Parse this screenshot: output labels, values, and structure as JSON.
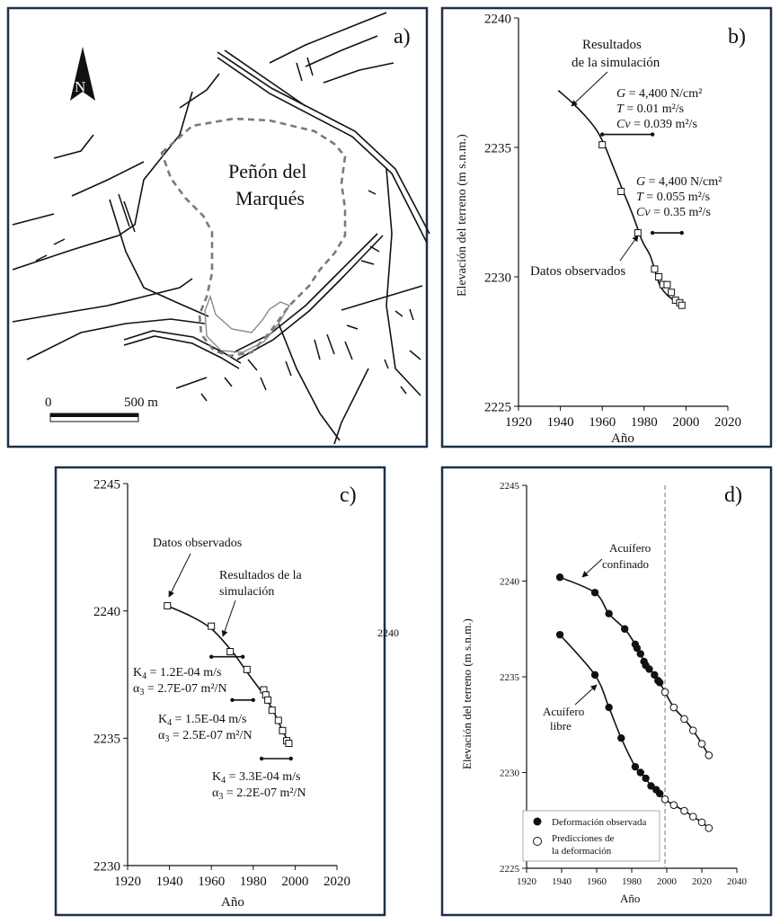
{
  "panel_a": {
    "letter": "a)",
    "north": "N",
    "place_name_1": "Peñón del",
    "place_name_2": "Marqués",
    "scale_zero": "0",
    "scale_end": "500 m"
  },
  "chart_data": [
    {
      "id": "b",
      "type": "line",
      "letter": "b)",
      "xlabel": "Año",
      "ylabel": "Elevación del terreno (m s.n.m.)",
      "xlim": [
        1920,
        2020
      ],
      "ylim": [
        2225,
        2240
      ],
      "xticks": [
        1920,
        1940,
        1960,
        1980,
        2000,
        2020
      ],
      "yticks": [
        2225,
        2230,
        2235,
        2240
      ],
      "series": [
        {
          "kind": "line",
          "x": [
            1939,
            1946,
            1952,
            1957,
            1961,
            1965,
            1970,
            1975,
            1979,
            1983,
            1986,
            1988,
            1991,
            1994,
            1997
          ],
          "y": [
            2237.2,
            2236.7,
            2236.2,
            2235.7,
            2235.1,
            2234.3,
            2233.3,
            2232.3,
            2231.4,
            2230.8,
            2230.0,
            2229.6,
            2229.3,
            2229.1,
            2228.9
          ]
        },
        {
          "kind": "open-square",
          "x": [
            1960,
            1969,
            1977,
            1985,
            1987,
            1989,
            1991,
            1993,
            1995,
            1997,
            1998
          ],
          "y": [
            2235.1,
            2233.3,
            2231.7,
            2230.3,
            2230.0,
            2229.7,
            2229.7,
            2229.4,
            2229.1,
            2229.0,
            2228.9
          ]
        }
      ],
      "period_bars": [
        {
          "x": [
            1960,
            1984
          ],
          "y": 2235.5
        },
        {
          "x": [
            1984,
            1998
          ],
          "y": 2231.7
        }
      ],
      "annotations": {
        "sim_label_1": "Resultados",
        "sim_label_2": "de la simulación",
        "obs_label": "Datos observados",
        "p1": {
          "G": "4,400 N/cm²",
          "T": "0.01 m²/s",
          "Cv": "0.039 m²/s"
        },
        "p2": {
          "G": "4,400 N/cm²",
          "T": "0.055 m²/s",
          "Cv": "0.35 m²/s"
        }
      }
    },
    {
      "id": "c",
      "type": "line",
      "letter": "c)",
      "xlabel": "Año",
      "ylabel": "",
      "xlim": [
        1920,
        2020
      ],
      "ylim": [
        2230,
        2245
      ],
      "xticks": [
        1920,
        1940,
        1960,
        1980,
        2000,
        2020
      ],
      "yticks": [
        2230,
        2235,
        2240,
        2245
      ],
      "stray_label": "2240",
      "series": [
        {
          "kind": "line",
          "x": [
            1939,
            1950,
            1960,
            1970,
            1977,
            1985,
            1990,
            1994,
            1998
          ],
          "y": [
            2240.2,
            2239.8,
            2239.3,
            2238.4,
            2237.6,
            2236.7,
            2236.0,
            2235.3,
            2234.7
          ]
        },
        {
          "kind": "open-square",
          "x": [
            1939,
            1960,
            1969,
            1977,
            1985,
            1986,
            1987,
            1989,
            1992,
            1994,
            1996,
            1997
          ],
          "y": [
            2240.2,
            2239.4,
            2238.4,
            2237.7,
            2236.9,
            2236.7,
            2236.5,
            2236.1,
            2235.7,
            2235.3,
            2234.9,
            2234.8
          ]
        }
      ],
      "period_bars": [
        {
          "x": [
            1960,
            1975
          ],
          "y": 2238.2
        },
        {
          "x": [
            1970,
            1980
          ],
          "y": 2236.5
        },
        {
          "x": [
            1984,
            1998
          ],
          "y": 2234.2
        }
      ],
      "annotations": {
        "obs_label": "Datos observados",
        "sim_label_1": "Resultados de la",
        "sim_label_2": "simulación",
        "p1": {
          "K": "1.2E-04 m/s",
          "a": "2.7E-07 m²/N"
        },
        "p2": {
          "K": "1.5E-04 m/s",
          "a": "2.5E-07 m²/N"
        },
        "p3": {
          "K": "3.3E-04 m/s",
          "a": "2.2E-07 m²/N"
        }
      }
    },
    {
      "id": "d",
      "type": "line",
      "letter": "d)",
      "xlabel": "Año",
      "ylabel": "Elevación del terreno (m s.n.m.)",
      "xlim": [
        1920,
        2040
      ],
      "ylim": [
        2225,
        2245
      ],
      "xticks": [
        1920,
        1940,
        1960,
        1980,
        2000,
        2020,
        2040
      ],
      "yticks": [
        2225,
        2230,
        2235,
        2240,
        2245
      ],
      "vline_x": 1999,
      "series": [
        {
          "name": "Acuífero confinado",
          "observed": {
            "x": [
              1939,
              1959,
              1967,
              1976,
              1982,
              1983,
              1985,
              1987,
              1988,
              1990,
              1993,
              1995,
              1996
            ],
            "y": [
              2240.2,
              2239.4,
              2238.3,
              2237.5,
              2236.7,
              2236.5,
              2236.2,
              2235.8,
              2235.6,
              2235.4,
              2235.1,
              2234.8,
              2234.7
            ]
          },
          "predicted": {
            "x": [
              1999,
              2004,
              2010,
              2015,
              2020,
              2024
            ],
            "y": [
              2234.2,
              2233.4,
              2232.8,
              2232.2,
              2231.5,
              2230.9
            ]
          }
        },
        {
          "name": "Acuífero libre",
          "observed": {
            "x": [
              1939,
              1959,
              1967,
              1974,
              1982,
              1985,
              1988,
              1991,
              1994,
              1996
            ],
            "y": [
              2237.2,
              2235.1,
              2233.4,
              2231.8,
              2230.3,
              2230.0,
              2229.7,
              2229.3,
              2229.1,
              2228.9
            ]
          },
          "predicted": {
            "x": [
              1999,
              2004,
              2010,
              2015,
              2020,
              2024
            ],
            "y": [
              2228.6,
              2228.3,
              2228.0,
              2227.7,
              2227.4,
              2227.1
            ]
          }
        }
      ],
      "annotations": {
        "conf_1": "Acuífero",
        "conf_2": "confinado",
        "libre_1": "Acuífero",
        "libre_2": "libre"
      },
      "legend": {
        "observed": "Deformación observada",
        "predicted_1": "Predicciones de",
        "predicted_2": "la deformación"
      }
    }
  ]
}
